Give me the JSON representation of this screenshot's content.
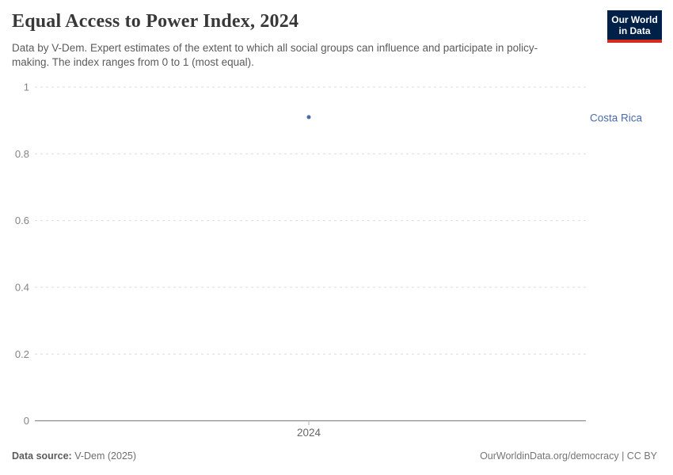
{
  "header": {
    "title": "Equal Access to Power Index, 2024",
    "subtitle": "Data by V-Dem. Expert estimates of the extent to which all social groups can influence and participate in policy-making. The index ranges from 0 to 1 (most equal).",
    "logo": {
      "line1": "Our World",
      "line2": "in Data"
    }
  },
  "footer": {
    "source_label": "Data source:",
    "source_value": " V-Dem (2025)",
    "note_right": "OurWorldinData.org/democracy | CC BY"
  },
  "colors": {
    "logo_bg": "#002147",
    "logo_red": "#d42b21",
    "title_text": "#383838",
    "subtitle_text": "#5b5b5b",
    "gridline": "#dcdcdc",
    "axis_line": "#8c8c8c",
    "tick_label": "#858585",
    "x_tick_label": "#666666",
    "point": "#4a6cab",
    "entity_label": "#4a6cab"
  },
  "chart_data": {
    "type": "scatter",
    "title": "Equal Access to Power Index, 2024",
    "xlabel": "",
    "ylabel": "",
    "x": [
      2024
    ],
    "xtick_labels": [
      "2024"
    ],
    "series": [
      {
        "name": "Costa Rica",
        "values": [
          0.91
        ]
      }
    ],
    "ylim": [
      0,
      1
    ],
    "yticks": [
      0,
      0.2,
      0.4,
      0.6,
      0.8,
      1
    ],
    "grid": "horizontal-dashed",
    "legend_position": "right-of-point"
  }
}
